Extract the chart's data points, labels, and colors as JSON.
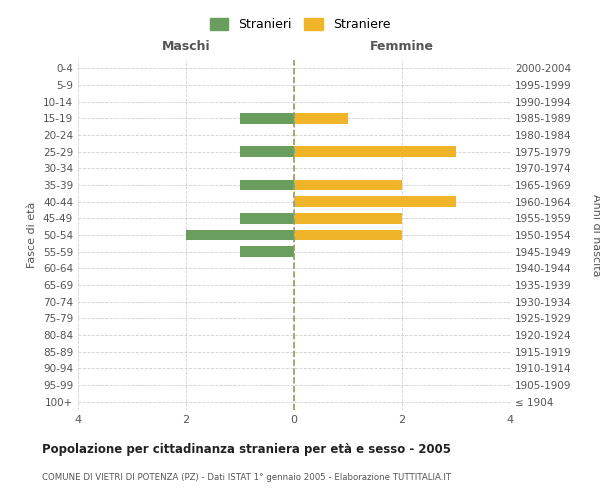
{
  "age_groups": [
    "100+",
    "95-99",
    "90-94",
    "85-89",
    "80-84",
    "75-79",
    "70-74",
    "65-69",
    "60-64",
    "55-59",
    "50-54",
    "45-49",
    "40-44",
    "35-39",
    "30-34",
    "25-29",
    "20-24",
    "15-19",
    "10-14",
    "5-9",
    "0-4"
  ],
  "birth_years": [
    "≤ 1904",
    "1905-1909",
    "1910-1914",
    "1915-1919",
    "1920-1924",
    "1925-1929",
    "1930-1934",
    "1935-1939",
    "1940-1944",
    "1945-1949",
    "1950-1954",
    "1955-1959",
    "1960-1964",
    "1965-1969",
    "1970-1974",
    "1975-1979",
    "1980-1984",
    "1985-1989",
    "1990-1994",
    "1995-1999",
    "2000-2004"
  ],
  "males": [
    0,
    0,
    0,
    0,
    0,
    0,
    0,
    0,
    0,
    -1,
    -2,
    -1,
    0,
    -1,
    0,
    -1,
    0,
    -1,
    0,
    0,
    0
  ],
  "females": [
    0,
    0,
    0,
    0,
    0,
    0,
    0,
    0,
    0,
    0,
    2,
    2,
    3,
    2,
    0,
    3,
    0,
    1,
    0,
    0,
    0
  ],
  "male_color": "#6a9e5e",
  "female_color": "#f0b429",
  "xlim": [
    -4,
    4
  ],
  "title": "Popolazione per cittadinanza straniera per età e sesso - 2005",
  "subtitle": "COMUNE DI VIETRI DI POTENZA (PZ) - Dati ISTAT 1° gennaio 2005 - Elaborazione TUTTITALIA.IT",
  "ylabel_left": "Fasce di età",
  "ylabel_right": "Anni di nascita",
  "xlabel_left": "Maschi",
  "xlabel_right": "Femmine",
  "legend_stranieri": "Stranieri",
  "legend_straniere": "Straniere",
  "bg_color": "#ffffff",
  "grid_color": "#d0d0d0",
  "bar_height": 0.65,
  "xticks": [
    -4,
    -2,
    0,
    2,
    4
  ],
  "xtick_labels": [
    "4",
    "2",
    "0",
    "2",
    "4"
  ]
}
